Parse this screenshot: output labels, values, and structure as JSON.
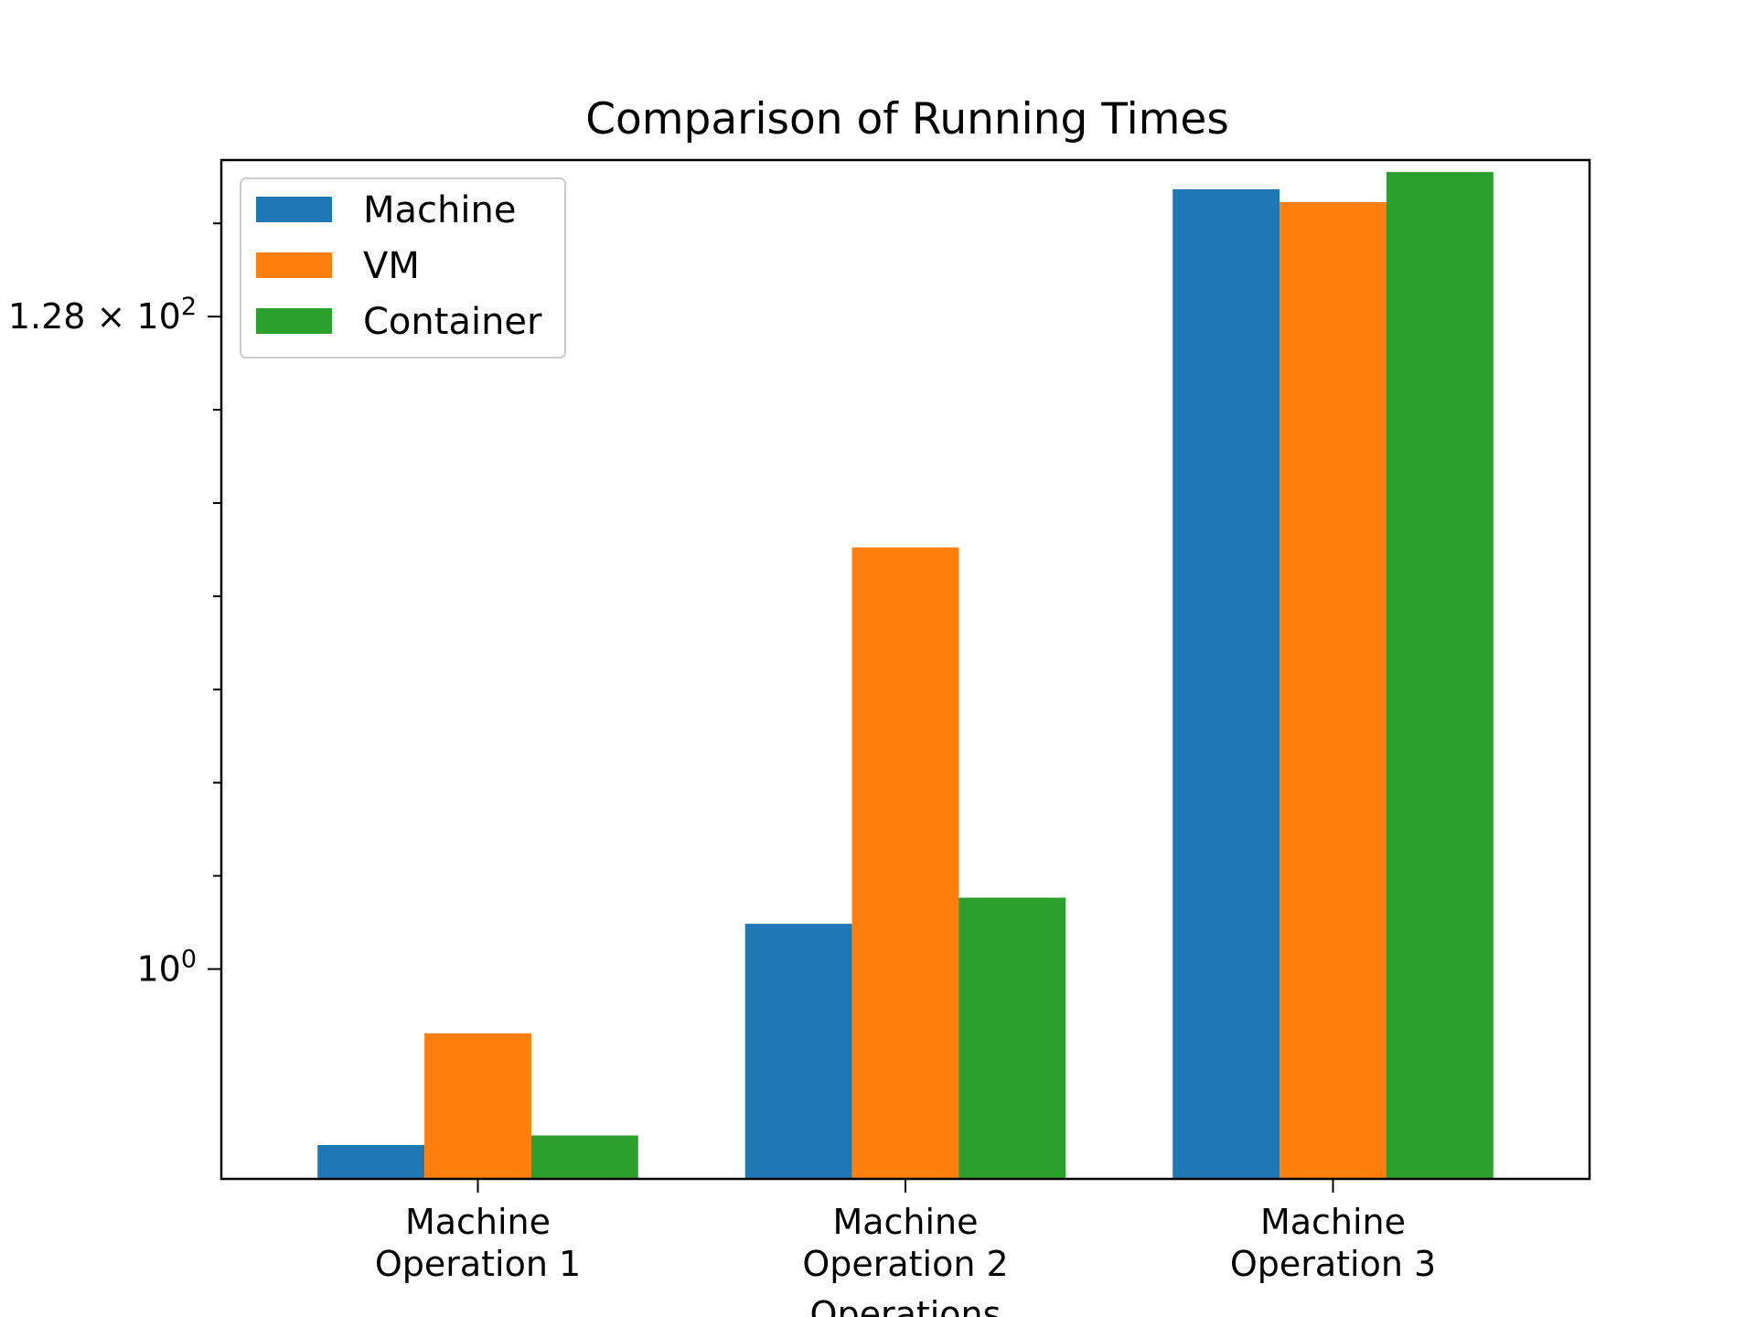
{
  "chart_data": {
    "type": "bar",
    "title": "Comparison of Running Times",
    "xlabel": "Operations",
    "ylabel": "",
    "y_scale": "log2",
    "ylim": [
      0.21,
      410
    ],
    "y_major_ticks": [
      {
        "value": 1,
        "label_base": "10",
        "label_exp": "0"
      },
      {
        "value": 128,
        "label_base": "1.28 × 10",
        "label_exp": "2"
      }
    ],
    "y_minor_ticks": [
      2,
      4,
      8,
      16,
      32,
      64,
      256
    ],
    "categories": [
      [
        "Machine",
        "Operation 1"
      ],
      [
        "Machine",
        "Operation 2"
      ],
      [
        "Machine",
        "Operation 3"
      ]
    ],
    "series": [
      {
        "name": "Machine",
        "color": "#1f77b4",
        "values": [
          0.27,
          1.4,
          330
        ]
      },
      {
        "name": "VM",
        "color": "#ff7f0e",
        "values": [
          0.62,
          23,
          300
        ]
      },
      {
        "name": "Container",
        "color": "#2ca02c",
        "values": [
          0.29,
          1.7,
          375
        ]
      }
    ],
    "legend": {
      "position": "upper-left",
      "entries": [
        "Machine",
        "VM",
        "Container"
      ]
    },
    "grid": false
  }
}
